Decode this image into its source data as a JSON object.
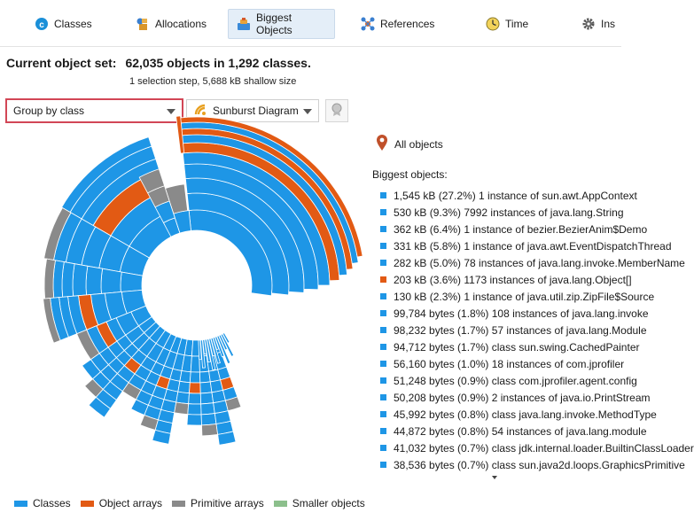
{
  "tabs": [
    {
      "label": "Classes",
      "icon": "class-c-icon"
    },
    {
      "label": "Allocations",
      "icon": "allocations-icon"
    },
    {
      "label": "Biggest Objects",
      "icon": "biggest-objects-icon"
    },
    {
      "label": "References",
      "icon": "references-icon"
    },
    {
      "label": "Time",
      "icon": "clock-icon"
    },
    {
      "label": "Ins",
      "icon": "gear-icon"
    }
  ],
  "header": {
    "label": "Current object set:",
    "count": "62,035 objects in 1,292 classes.",
    "subtitle": "1 selection step, 5,688 kB shallow size"
  },
  "controls": {
    "grouping": "Group by class",
    "visualization": "Sunburst Diagram"
  },
  "panel": {
    "all_objects": "All objects",
    "biggest_title": "Biggest objects:",
    "items": [
      {
        "text": "1,545 kB (27.2%) 1 instance of sun.awt.AppContext",
        "color": "#1e96e6"
      },
      {
        "text": "530 kB (9.3%) 7992 instances of java.lang.String",
        "color": "#1e96e6"
      },
      {
        "text": "362 kB (6.4%) 1 instance of bezier.BezierAnim$Demo",
        "color": "#1e96e6"
      },
      {
        "text": "331 kB (5.8%) 1 instance of java.awt.EventDispatchThread",
        "color": "#1e96e6"
      },
      {
        "text": "282 kB (5.0%) 78 instances of java.lang.invoke.MemberName",
        "color": "#1e96e6"
      },
      {
        "text": "203 kB (3.6%) 1173 instances of java.lang.Object[]",
        "color": "#e25a14"
      },
      {
        "text": "130 kB (2.3%) 1 instance of java.util.zip.ZipFile$Source",
        "color": "#1e96e6"
      },
      {
        "text": "99,784 bytes (1.8%) 108 instances of java.lang.invoke",
        "color": "#1e96e6"
      },
      {
        "text": "98,232 bytes (1.7%) 57 instances of java.lang.Module",
        "color": "#1e96e6"
      },
      {
        "text": "94,712 bytes (1.7%) class sun.swing.CachedPainter",
        "color": "#1e96e6"
      },
      {
        "text": "56,160 bytes (1.0%) 18 instances of com.jprofiler",
        "color": "#1e96e6"
      },
      {
        "text": "51,248 bytes (0.9%) class com.jprofiler.agent.config",
        "color": "#1e96e6"
      },
      {
        "text": "50,208 bytes (0.9%) 2 instances of java.io.PrintStream",
        "color": "#1e96e6"
      },
      {
        "text": "45,992 bytes (0.8%) class java.lang.invoke.MethodType",
        "color": "#1e96e6"
      },
      {
        "text": "44,872 bytes (0.8%) 54 instances of java.lang.module",
        "color": "#1e96e6"
      },
      {
        "text": "41,032 bytes (0.7%) class jdk.internal.loader.BuiltinClassLoader",
        "color": "#1e96e6"
      },
      {
        "text": "38,536 bytes (0.7%) class sun.java2d.loops.GraphicsPrimitive",
        "color": "#1e96e6"
      }
    ]
  },
  "legend": [
    {
      "label": "Classes",
      "color": "#1e96e6"
    },
    {
      "label": "Object arrays",
      "color": "#e25a14"
    },
    {
      "label": "Primitive arrays",
      "color": "#8a8a8a"
    },
    {
      "label": "Smaller objects",
      "color": "#8cbf8c"
    }
  ],
  "colors": {
    "classes": "#1e96e6",
    "object_arrays": "#e25a14",
    "primitive_arrays": "#8a8a8a",
    "highlight_border": "#d24656",
    "active_tab": "#e4eef8",
    "location_pin": "#c0502a"
  }
}
